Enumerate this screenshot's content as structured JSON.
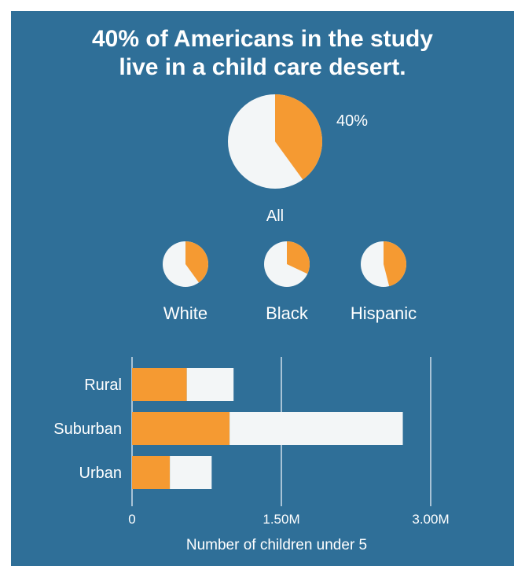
{
  "colors": {
    "background": "#2f6f98",
    "highlight": "#f59a32",
    "base": "#f3f6f7",
    "text": "#ffffff",
    "grid": "#a9c3d6"
  },
  "title_lines": [
    "40% of Americans in the study",
    "live in a child care desert."
  ],
  "chart_data": [
    {
      "type": "pie",
      "title": "40% of Americans in the study live in a child care desert.",
      "groups": [
        {
          "label": "All",
          "share": 0.4,
          "value_label": "40%"
        },
        {
          "label": "White",
          "share": 0.4,
          "value_label": ""
        },
        {
          "label": "Black",
          "share": 0.32,
          "value_label": ""
        },
        {
          "label": "Hispanic",
          "share": 0.46,
          "value_label": ""
        }
      ]
    },
    {
      "type": "bar",
      "orientation": "horizontal",
      "stacked": true,
      "categories": [
        "Rural",
        "Suburban",
        "Urban"
      ],
      "series": [
        {
          "name": "",
          "color": "#f59a32",
          "values": [
            550000,
            980000,
            380000
          ]
        },
        {
          "name": "",
          "color": "#f3f6f7",
          "values": [
            470000,
            1740000,
            420000
          ]
        }
      ],
      "xlabel": "Number of children under 5",
      "xlim": [
        0,
        3000000
      ],
      "xticks": [
        {
          "value": 0,
          "label": "0"
        },
        {
          "value": 1500000,
          "label": "1.50M"
        },
        {
          "value": 3000000,
          "label": "3.00M"
        }
      ],
      "grid": true
    }
  ]
}
